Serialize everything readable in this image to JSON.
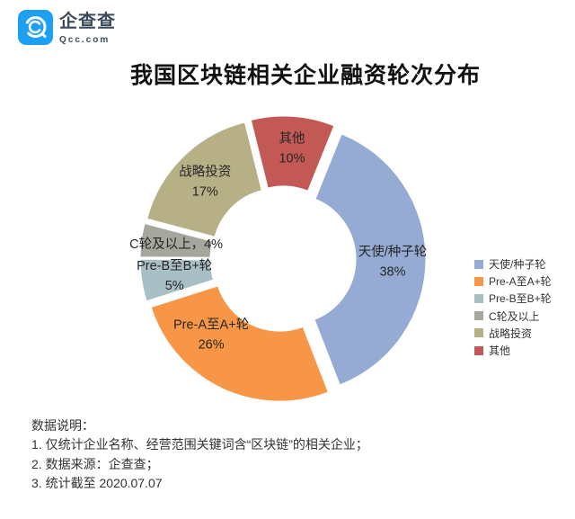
{
  "brand": {
    "name": "企查查",
    "domain": "Qcc.com",
    "brand_color": "#1d9ff2"
  },
  "title": "我国区块链相关企业融资轮次分布",
  "chart_data": {
    "type": "pie",
    "subtype": "exploded-doughnut",
    "title": "我国区块链相关企业融资轮次分布",
    "categories": [
      "天使/种子轮",
      "Pre-A至A+轮",
      "Pre-B至B+轮",
      "C轮及以上",
      "战略投资",
      "其他"
    ],
    "values": [
      38,
      26,
      5,
      4,
      17,
      10
    ],
    "unit": "%",
    "colors": [
      "#95ABD3",
      "#F79646",
      "#A9BFC6",
      "#A6A69D",
      "#B7AF85",
      "#C25955"
    ],
    "label_texts": [
      [
        "天使/种子轮",
        "38%"
      ],
      [
        "Pre-A至A+轮",
        "26%"
      ],
      [
        "Pre-B至B+轮",
        "5%"
      ],
      [
        "C轮及以上，4%"
      ],
      [
        "战略投资",
        "17%"
      ],
      [
        "其他",
        "10%"
      ]
    ],
    "legend": [
      "天使/种子轮",
      "Pre-A至A+轮",
      "Pre-B至B+轮",
      "C轮及以上",
      "战略投资",
      "其他"
    ],
    "legend_position": "right",
    "start_angle_deg": 22,
    "donut_hole_ratio": 0.48
  },
  "notes": {
    "heading": "数据说明：",
    "items": [
      "1. 仅统计企业名称、经营范围关键词含“区块链”的相关企业；",
      "2. 数据来源：企查查；",
      "3. 统计截至 2020.07.07"
    ]
  }
}
